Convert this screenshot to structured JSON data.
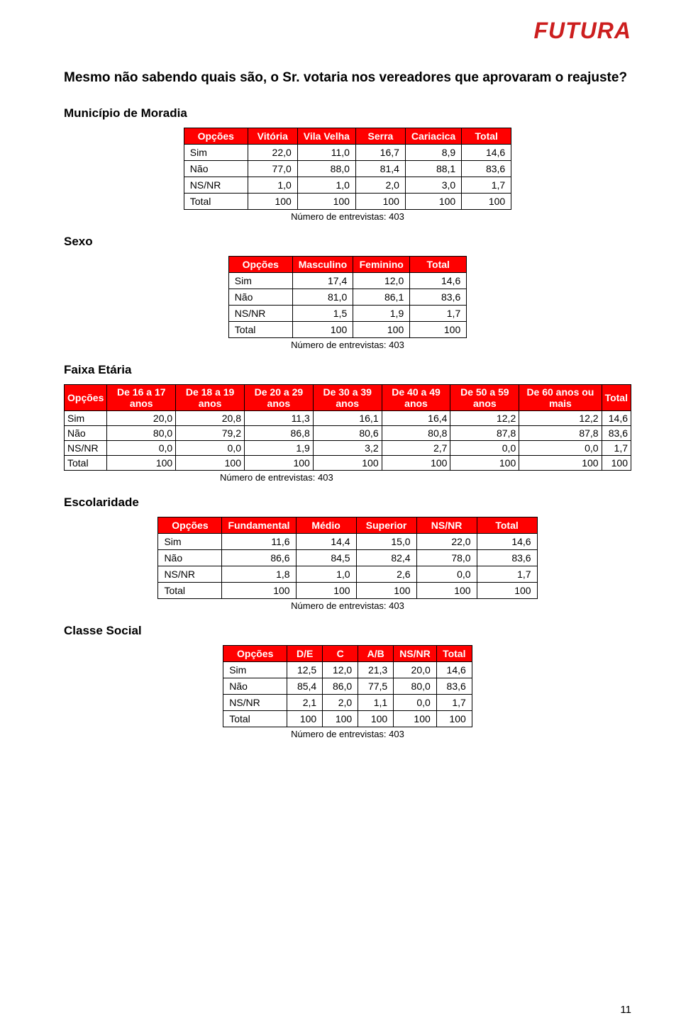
{
  "logo_text": "FUTURA",
  "question": "Mesmo não sabendo quais são, o Sr. votaria nos vereadores que aprovaram o reajuste?",
  "page_number": "11",
  "note_text": "Número de entrevistas: 403",
  "labels": {
    "opcoes": "Opções",
    "total": "Total",
    "sim": "Sim",
    "nao": "Não",
    "nsnr": "NS/NR"
  },
  "sections": {
    "municipio": {
      "title": "Município de Moradia",
      "headers": [
        "Vitória",
        "Vila Velha",
        "Serra",
        "Cariacica",
        "Total"
      ],
      "rows": [
        {
          "label": "Sim",
          "vals": [
            "22,0",
            "11,0",
            "16,7",
            "8,9",
            "14,6"
          ]
        },
        {
          "label": "Não",
          "vals": [
            "77,0",
            "88,0",
            "81,4",
            "88,1",
            "83,6"
          ]
        },
        {
          "label": "NS/NR",
          "vals": [
            "1,0",
            "1,0",
            "2,0",
            "3,0",
            "1,7"
          ]
        },
        {
          "label": "Total",
          "vals": [
            "100",
            "100",
            "100",
            "100",
            "100"
          ]
        }
      ]
    },
    "sexo": {
      "title": "Sexo",
      "headers": [
        "Masculino",
        "Feminino",
        "Total"
      ],
      "rows": [
        {
          "label": "Sim",
          "vals": [
            "17,4",
            "12,0",
            "14,6"
          ]
        },
        {
          "label": "Não",
          "vals": [
            "81,0",
            "86,1",
            "83,6"
          ]
        },
        {
          "label": "NS/NR",
          "vals": [
            "1,5",
            "1,9",
            "1,7"
          ]
        },
        {
          "label": "Total",
          "vals": [
            "100",
            "100",
            "100"
          ]
        }
      ]
    },
    "faixa": {
      "title": "Faixa Etária",
      "headers": [
        "De 16 a 17 anos",
        "De 18  a 19 anos",
        "De 20 a 29 anos",
        "De 30 a 39 anos",
        "De 40 a 49 anos",
        "De 50 a 59 anos",
        "De 60 anos ou mais",
        "Total"
      ],
      "rows": [
        {
          "label": "Sim",
          "vals": [
            "20,0",
            "20,8",
            "11,3",
            "16,1",
            "16,4",
            "12,2",
            "12,2",
            "14,6"
          ]
        },
        {
          "label": "Não",
          "vals": [
            "80,0",
            "79,2",
            "86,8",
            "80,6",
            "80,8",
            "87,8",
            "87,8",
            "83,6"
          ]
        },
        {
          "label": "NS/NR",
          "vals": [
            "0,0",
            "0,0",
            "1,9",
            "3,2",
            "2,7",
            "0,0",
            "0,0",
            "1,7"
          ]
        },
        {
          "label": "Total",
          "vals": [
            "100",
            "100",
            "100",
            "100",
            "100",
            "100",
            "100",
            "100"
          ]
        }
      ]
    },
    "escolaridade": {
      "title": "Escolaridade",
      "headers": [
        "Fundamental",
        "Médio",
        "Superior",
        "NS/NR",
        "Total"
      ],
      "rows": [
        {
          "label": "Sim",
          "vals": [
            "11,6",
            "14,4",
            "15,0",
            "22,0",
            "14,6"
          ]
        },
        {
          "label": "Não",
          "vals": [
            "86,6",
            "84,5",
            "82,4",
            "78,0",
            "83,6"
          ]
        },
        {
          "label": "NS/NR",
          "vals": [
            "1,8",
            "1,0",
            "2,6",
            "0,0",
            "1,7"
          ]
        },
        {
          "label": "Total",
          "vals": [
            "100",
            "100",
            "100",
            "100",
            "100"
          ]
        }
      ]
    },
    "classe": {
      "title": "Classe Social",
      "headers": [
        "D/E",
        "C",
        "A/B",
        "NS/NR",
        "Total"
      ],
      "rows": [
        {
          "label": "Sim",
          "vals": [
            "12,5",
            "12,0",
            "21,3",
            "20,0",
            "14,6"
          ]
        },
        {
          "label": "Não",
          "vals": [
            "85,4",
            "86,0",
            "77,5",
            "80,0",
            "83,6"
          ]
        },
        {
          "label": "NS/NR",
          "vals": [
            "2,1",
            "2,0",
            "1,1",
            "0,0",
            "1,7"
          ]
        },
        {
          "label": "Total",
          "vals": [
            "100",
            "100",
            "100",
            "100",
            "100"
          ]
        }
      ]
    }
  }
}
